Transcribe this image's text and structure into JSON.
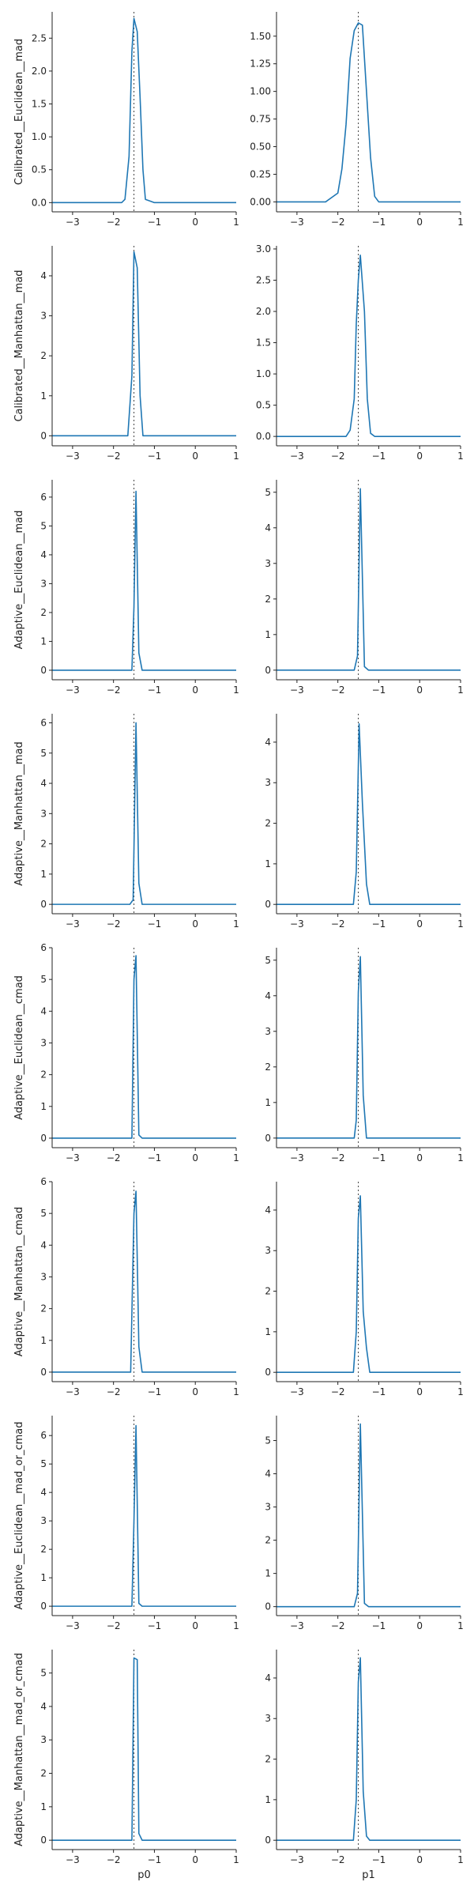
{
  "chart_data": {
    "type": "line",
    "true_value": -1.5,
    "columns": [
      {
        "xlabel": "p0"
      },
      {
        "xlabel": "p1"
      }
    ],
    "xlim": [
      -3.5,
      1
    ],
    "xticks": [
      -3,
      -2,
      -1,
      0,
      1
    ],
    "xtick_labels": [
      "−3",
      "−2",
      "−1",
      "0",
      "1"
    ],
    "rows": [
      {
        "ylabel": "Calibrated__Euclidean__mad",
        "panels": [
          {
            "ylim": [
              -0.14,
              2.9
            ],
            "yticks": [
              0,
              0.5,
              1,
              1.5,
              2,
              2.5
            ],
            "ytick_labels": [
              "0.0",
              "0.5",
              "1.0",
              "1.5",
              "2.0",
              "2.5"
            ],
            "x": [
              -3.5,
              -1.8,
              -1.72,
              -1.62,
              -1.55,
              -1.5,
              -1.42,
              -1.35,
              -1.28,
              -1.22,
              -1.0,
              1.0
            ],
            "y": [
              0,
              0,
              0.05,
              0.7,
              2.3,
              2.8,
              2.6,
              1.6,
              0.5,
              0.05,
              0,
              0
            ]
          },
          {
            "ylim": [
              -0.09,
              1.72
            ],
            "yticks": [
              0,
              0.25,
              0.5,
              0.75,
              1,
              1.25,
              1.5
            ],
            "ytick_labels": [
              "0.00",
              "0.25",
              "0.50",
              "0.75",
              "1.00",
              "1.25",
              "1.50"
            ],
            "x": [
              -3.5,
              -2.3,
              -2.0,
              -1.9,
              -1.8,
              -1.7,
              -1.6,
              -1.5,
              -1.4,
              -1.3,
              -1.2,
              -1.1,
              -1.0,
              1.0
            ],
            "y": [
              0,
              0,
              0.08,
              0.3,
              0.7,
              1.3,
              1.55,
              1.62,
              1.6,
              1.0,
              0.4,
              0.05,
              0,
              0
            ]
          }
        ]
      },
      {
        "ylabel": "Calibrated__Manhattan__mad",
        "panels": [
          {
            "ylim": [
              -0.25,
              4.75
            ],
            "yticks": [
              0,
              1,
              2,
              3,
              4
            ],
            "ytick_labels": [
              "0",
              "1",
              "2",
              "3",
              "4"
            ],
            "x": [
              -3.5,
              -1.65,
              -1.55,
              -1.5,
              -1.42,
              -1.35,
              -1.28,
              1.0
            ],
            "y": [
              0,
              0,
              1.5,
              4.6,
              4.2,
              1.0,
              0,
              0
            ]
          },
          {
            "ylim": [
              -0.15,
              3.05
            ],
            "yticks": [
              0,
              0.5,
              1,
              1.5,
              2,
              2.5,
              3
            ],
            "ytick_labels": [
              "0.0",
              "0.5",
              "1.0",
              "1.5",
              "2.0",
              "2.5",
              "3.0"
            ],
            "x": [
              -3.5,
              -1.8,
              -1.7,
              -1.6,
              -1.55,
              -1.5,
              -1.45,
              -1.35,
              -1.28,
              -1.2,
              -1.1,
              1.0
            ],
            "y": [
              0,
              0,
              0.1,
              0.6,
              1.8,
              2.5,
              2.9,
              2.0,
              0.6,
              0.05,
              0,
              0
            ]
          }
        ]
      },
      {
        "ylabel": "Adaptive__Euclidean__mad",
        "panels": [
          {
            "ylim": [
              -0.33,
              6.6
            ],
            "yticks": [
              0,
              1,
              2,
              3,
              4,
              5,
              6
            ],
            "ytick_labels": [
              "0",
              "1",
              "2",
              "3",
              "4",
              "5",
              "6"
            ],
            "x": [
              -3.5,
              -1.55,
              -1.5,
              -1.45,
              -1.38,
              -1.3,
              1.0
            ],
            "y": [
              0,
              0,
              2.2,
              6.2,
              0.6,
              0,
              0
            ]
          },
          {
            "ylim": [
              -0.27,
              5.35
            ],
            "yticks": [
              0,
              1,
              2,
              3,
              4,
              5
            ],
            "ytick_labels": [
              "0",
              "1",
              "2",
              "3",
              "4",
              "5"
            ],
            "x": [
              -3.5,
              -1.6,
              -1.52,
              -1.45,
              -1.35,
              -1.25,
              1.0
            ],
            "y": [
              0,
              0,
              0.4,
              5.1,
              0.1,
              0,
              0
            ]
          }
        ]
      },
      {
        "ylabel": "Adaptive__Manhattan__mad",
        "panels": [
          {
            "ylim": [
              -0.31,
              6.3
            ],
            "yticks": [
              0,
              1,
              2,
              3,
              4,
              5,
              6
            ],
            "ytick_labels": [
              "0",
              "1",
              "2",
              "3",
              "4",
              "5",
              "6"
            ],
            "x": [
              -3.5,
              -1.6,
              -1.52,
              -1.45,
              -1.38,
              -1.3,
              1.0
            ],
            "y": [
              0,
              0,
              0.15,
              6.0,
              0.7,
              0,
              0
            ]
          },
          {
            "ylim": [
              -0.23,
              4.7
            ],
            "yticks": [
              0,
              1,
              2,
              3,
              4
            ],
            "ytick_labels": [
              "0",
              "1",
              "2",
              "3",
              "4"
            ],
            "x": [
              -3.5,
              -1.62,
              -1.55,
              -1.48,
              -1.4,
              -1.3,
              -1.22,
              1.0
            ],
            "y": [
              0,
              0,
              0.8,
              4.45,
              2.5,
              0.5,
              0,
              0
            ]
          }
        ]
      },
      {
        "ylabel": "Adaptive__Euclidean__cmad",
        "panels": [
          {
            "ylim": [
              -0.3,
              6.0
            ],
            "yticks": [
              0,
              1,
              2,
              3,
              4,
              5,
              6
            ],
            "ytick_labels": [
              "0",
              "1",
              "2",
              "3",
              "4",
              "5",
              "6"
            ],
            "x": [
              -3.5,
              -1.55,
              -1.5,
              -1.45,
              -1.38,
              -1.3,
              1.0
            ],
            "y": [
              0,
              0,
              5.0,
              5.75,
              0.1,
              0,
              0
            ]
          },
          {
            "ylim": [
              -0.27,
              5.35
            ],
            "yticks": [
              0,
              1,
              2,
              3,
              4,
              5
            ],
            "ytick_labels": [
              "0",
              "1",
              "2",
              "3",
              "4",
              "5"
            ],
            "x": [
              -3.5,
              -1.6,
              -1.55,
              -1.5,
              -1.45,
              -1.38,
              -1.3,
              1.0
            ],
            "y": [
              0,
              0,
              0.5,
              4.1,
              5.1,
              1.2,
              0,
              0
            ]
          }
        ]
      },
      {
        "ylabel": "Adaptive__Manhattan__cmad",
        "panels": [
          {
            "ylim": [
              -0.3,
              6.0
            ],
            "yticks": [
              0,
              1,
              2,
              3,
              4,
              5,
              6
            ],
            "ytick_labels": [
              "0",
              "1",
              "2",
              "3",
              "4",
              "5",
              "6"
            ],
            "x": [
              -3.5,
              -1.58,
              -1.5,
              -1.45,
              -1.38,
              -1.3,
              1.0
            ],
            "y": [
              0,
              0,
              5.0,
              5.7,
              0.8,
              0,
              0
            ]
          },
          {
            "ylim": [
              -0.23,
              4.7
            ],
            "yticks": [
              0,
              1,
              2,
              3,
              4
            ],
            "ytick_labels": [
              "0",
              "1",
              "2",
              "3",
              "4"
            ],
            "x": [
              -3.5,
              -1.62,
              -1.55,
              -1.5,
              -1.45,
              -1.38,
              -1.3,
              -1.22,
              1.0
            ],
            "y": [
              0,
              0,
              1.0,
              3.8,
              4.35,
              1.5,
              0.6,
              0,
              0
            ]
          }
        ]
      },
      {
        "ylabel": "Adaptive__Euclidean__mad_or_cmad",
        "panels": [
          {
            "ylim": [
              -0.33,
              6.7
            ],
            "yticks": [
              0,
              1,
              2,
              3,
              4,
              5,
              6
            ],
            "ytick_labels": [
              "0",
              "1",
              "2",
              "3",
              "4",
              "5",
              "6"
            ],
            "x": [
              -3.5,
              -1.55,
              -1.5,
              -1.45,
              -1.38,
              -1.3,
              1.0
            ],
            "y": [
              0,
              0,
              3.0,
              6.35,
              0.1,
              0,
              0
            ]
          },
          {
            "ylim": [
              -0.27,
              5.75
            ],
            "yticks": [
              0,
              1,
              2,
              3,
              4,
              5
            ],
            "ytick_labels": [
              "0",
              "1",
              "2",
              "3",
              "4",
              "5"
            ],
            "x": [
              -3.5,
              -1.6,
              -1.52,
              -1.45,
              -1.35,
              -1.25,
              1.0
            ],
            "y": [
              0,
              0,
              0.4,
              5.5,
              0.1,
              0,
              0
            ]
          }
        ]
      },
      {
        "ylabel": "Adaptive__Manhattan__mad_or_cmad",
        "panels": [
          {
            "ylim": [
              -0.28,
              5.7
            ],
            "yticks": [
              0,
              1,
              2,
              3,
              4,
              5
            ],
            "ytick_labels": [
              "0",
              "1",
              "2",
              "3",
              "4",
              "5"
            ],
            "x": [
              -3.5,
              -1.55,
              -1.5,
              -1.42,
              -1.38,
              -1.3,
              1.0
            ],
            "y": [
              0,
              0,
              5.45,
              5.4,
              0.2,
              0,
              0
            ]
          },
          {
            "ylim": [
              -0.23,
              4.7
            ],
            "yticks": [
              0,
              1,
              2,
              3,
              4
            ],
            "ytick_labels": [
              "0",
              "1",
              "2",
              "3",
              "4"
            ],
            "x": [
              -3.5,
              -1.62,
              -1.55,
              -1.5,
              -1.45,
              -1.38,
              -1.3,
              -1.22,
              1.0
            ],
            "y": [
              0,
              0,
              1.0,
              3.9,
              4.5,
              1.2,
              0.1,
              0,
              0
            ]
          }
        ]
      }
    ]
  }
}
